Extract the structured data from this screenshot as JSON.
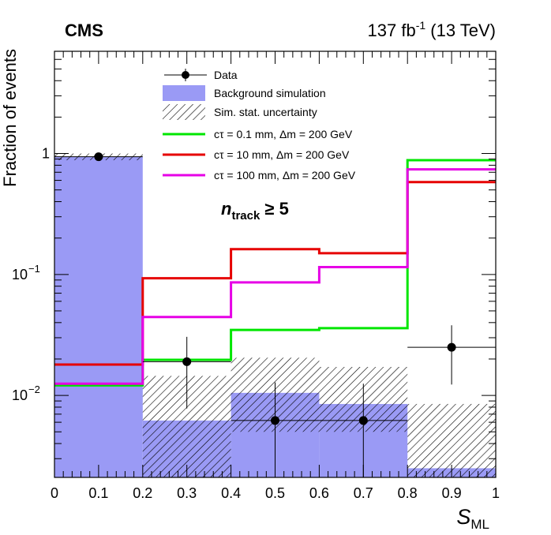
{
  "chart_data": {
    "type": "histogram",
    "experiment": "CMS",
    "lumi_label": "137 fb",
    "lumi_sup": "-1",
    "energy_label": " (13 TeV)",
    "ylabel": "Fraction of events",
    "xlabel_main": "S",
    "xlabel_sub": "ML",
    "annotation_main": "n",
    "annotation_sub": "track",
    "annotation_rest": " ≥ 5",
    "x_range": [
      0,
      1
    ],
    "y_range": [
      0.0021,
      7.0
    ],
    "y_scale": "log",
    "x_ticks": [
      {
        "v": 0,
        "label": "0"
      },
      {
        "v": 0.1,
        "label": "0.1"
      },
      {
        "v": 0.2,
        "label": "0.2"
      },
      {
        "v": 0.3,
        "label": "0.3"
      },
      {
        "v": 0.4,
        "label": "0.4"
      },
      {
        "v": 0.5,
        "label": "0.5"
      },
      {
        "v": 0.6,
        "label": "0.6"
      },
      {
        "v": 0.7,
        "label": "0.7"
      },
      {
        "v": 0.8,
        "label": "0.8"
      },
      {
        "v": 0.9,
        "label": "0.9"
      },
      {
        "v": 1,
        "label": "1"
      }
    ],
    "y_ticks": [
      {
        "v": 1,
        "base": "1",
        "exp": ""
      },
      {
        "v": 0.1,
        "base": "10",
        "exp": "−1"
      },
      {
        "v": 0.01,
        "base": "10",
        "exp": "−2"
      }
    ],
    "bins": [
      0,
      0.2,
      0.4,
      0.6,
      0.8,
      1.0
    ],
    "background": [
      0.94,
      0.0062,
      0.0105,
      0.0085,
      0.0025
    ],
    "background_unc_low": [
      0.88,
      0.0021,
      0.005,
      0.005,
      0.0021
    ],
    "background_unc_high": [
      1.0,
      0.0145,
      0.0205,
      0.0172,
      0.0085
    ],
    "data": {
      "x": [
        0.1,
        0.3,
        0.5,
        0.7,
        0.9
      ],
      "y": [
        0.94,
        0.019,
        0.0062,
        0.0062,
        0.025
      ],
      "err_low": [
        0.88,
        0.0078,
        0.0021,
        0.0021,
        0.0123
      ],
      "err_high": [
        1.0,
        0.0305,
        0.0128,
        0.0125,
        0.038
      ]
    },
    "signals": [
      {
        "name": "cτ = 0.1 mm, Δm = 200 GeV",
        "color": "#00e600",
        "values": [
          0.0121,
          0.0197,
          0.0348,
          0.036,
          0.88
        ]
      },
      {
        "name": "cτ = 10 mm, Δm = 200 GeV",
        "color": "#e60000",
        "values": [
          0.018,
          0.093,
          0.162,
          0.15,
          0.58
        ]
      },
      {
        "name": "cτ = 100 mm, Δm = 200 GeV",
        "color": "#e600e6",
        "values": [
          0.0125,
          0.0445,
          0.086,
          0.115,
          0.74
        ]
      }
    ],
    "legend": {
      "data_label": "Data",
      "background_label": "Background simulation",
      "uncertainty_label": "Sim. stat. uncertainty",
      "background_color": "#9a9af5"
    }
  }
}
